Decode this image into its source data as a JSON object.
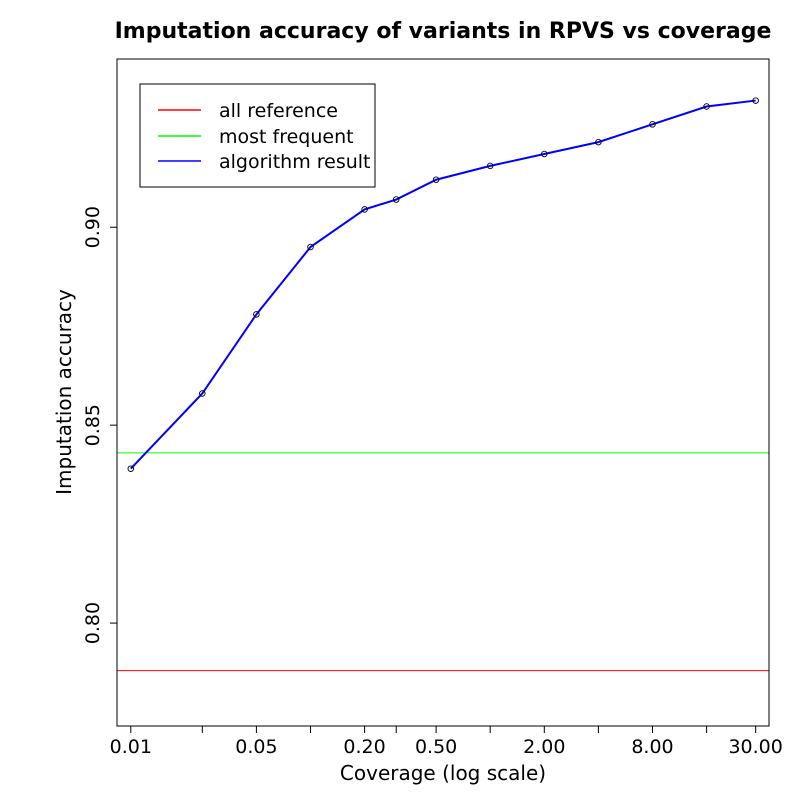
{
  "chart_data": {
    "type": "line",
    "title": "Imputation accuracy of variants in RPVS vs coverage",
    "xlabel": "Coverage (log scale)",
    "ylabel": "Imputation accuracy",
    "x_scale": "log",
    "x_ticks": [
      0.01,
      0.025,
      0.05,
      0.1,
      0.2,
      0.3,
      0.5,
      1,
      2,
      4,
      8,
      16,
      30
    ],
    "x_tick_labels": [
      "0.01",
      "",
      "0.05",
      "",
      "0.20",
      "",
      "0.50",
      "",
      "2.00",
      "",
      "8.00",
      "",
      "30.00"
    ],
    "y_ticks": [
      0.8,
      0.85,
      0.9
    ],
    "y_tick_labels": [
      "0.80",
      "0.85",
      "0.90"
    ],
    "xlim": [
      0.00838,
      35.6
    ],
    "ylim": [
      0.774,
      0.9425
    ],
    "grid": false,
    "legend_position": "top-left",
    "series": [
      {
        "name": "all reference",
        "color": "#ff0000",
        "type": "hline",
        "value": 0.788
      },
      {
        "name": "most frequent",
        "color": "#00ff00",
        "type": "hline",
        "value": 0.843
      },
      {
        "name": "algorithm result",
        "color": "#0000ff",
        "type": "line",
        "markers": true,
        "x": [
          0.01,
          0.025,
          0.05,
          0.1,
          0.2,
          0.3,
          0.5,
          1,
          2,
          4,
          8,
          16,
          30
        ],
        "y": [
          0.839,
          0.858,
          0.878,
          0.895,
          0.9045,
          0.907,
          0.912,
          0.9155,
          0.9185,
          0.9215,
          0.926,
          0.9305,
          0.932
        ]
      }
    ]
  }
}
